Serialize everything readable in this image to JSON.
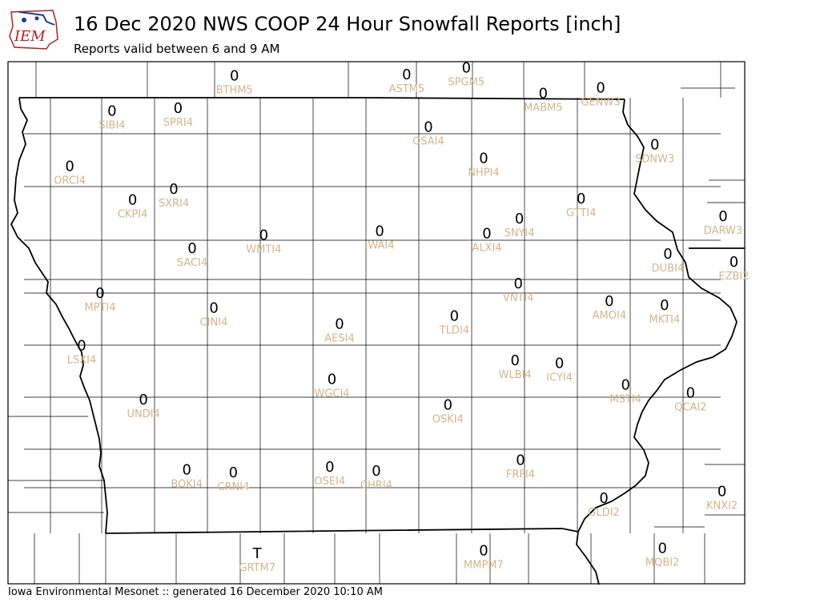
{
  "header": {
    "title": "16 Dec 2020 NWS COOP 24 Hour Snowfall Reports [inch]",
    "subtitle": "Reports valid between 6 and 9 AM"
  },
  "logo": {
    "text": "IEM",
    "color": "#b22222"
  },
  "footer": {
    "text": "Iowa Environmental Mesonet :: generated 16 December 2020 10:10 AM"
  },
  "colors": {
    "value": "#000000",
    "station_id": "#d2b48c",
    "county_line": "#000000",
    "state_line": "#000000"
  },
  "chart_data": {
    "type": "map",
    "title": "16 Dec 2020 NWS COOP 24 Hour Snowfall Reports [inch]",
    "units": "inch",
    "stations": [
      {
        "id": "BTHM5",
        "value": "0",
        "lon": -94.61,
        "lat": 43.66
      },
      {
        "id": "ASTM5",
        "value": "0",
        "lon": -93.02,
        "lat": 43.67
      },
      {
        "id": "SPGM5",
        "value": "0",
        "lon": -92.47,
        "lat": 43.72
      },
      {
        "id": "MABM5",
        "value": "0",
        "lon": -91.76,
        "lat": 43.53
      },
      {
        "id": "GENW3",
        "value": "0",
        "lon": -91.23,
        "lat": 43.57
      },
      {
        "id": "SIBI4",
        "value": "0",
        "lon": -95.74,
        "lat": 43.4
      },
      {
        "id": "SPRI4",
        "value": "0",
        "lon": -95.13,
        "lat": 43.42
      },
      {
        "id": "OSAI4",
        "value": "0",
        "lon": -92.82,
        "lat": 43.28
      },
      {
        "id": "NHPI4",
        "value": "0",
        "lon": -92.31,
        "lat": 43.05
      },
      {
        "id": "SDNW3",
        "value": "0",
        "lon": -90.73,
        "lat": 43.15
      },
      {
        "id": "ORCI4",
        "value": "0",
        "lon": -96.13,
        "lat": 42.99
      },
      {
        "id": "SXRI4",
        "value": "0",
        "lon": -95.17,
        "lat": 42.82
      },
      {
        "id": "CKPI4",
        "value": "0",
        "lon": -95.55,
        "lat": 42.74
      },
      {
        "id": "GTTI4",
        "value": "0",
        "lon": -91.41,
        "lat": 42.75
      },
      {
        "id": "DARW3",
        "value": "0",
        "lon": -90.1,
        "lat": 42.62
      },
      {
        "id": "WMTI4",
        "value": "0",
        "lon": -94.34,
        "lat": 42.48
      },
      {
        "id": "IWAI4",
        "value": "0",
        "lon": -93.27,
        "lat": 42.51
      },
      {
        "id": "ALXI4",
        "value": "0",
        "lon": -92.28,
        "lat": 42.49
      },
      {
        "id": "SNYI4",
        "value": "0",
        "lon": -91.98,
        "lat": 42.6
      },
      {
        "id": "SACI4",
        "value": "0",
        "lon": -95.0,
        "lat": 42.38
      },
      {
        "id": "DUBI4",
        "value": "0",
        "lon": -90.61,
        "lat": 42.34
      },
      {
        "id": "EZBI2",
        "value": "0",
        "lon": -90.0,
        "lat": 42.28
      },
      {
        "id": "MPTI4",
        "value": "0",
        "lon": -95.85,
        "lat": 42.05
      },
      {
        "id": "CINI4",
        "value": "0",
        "lon": -94.8,
        "lat": 41.94
      },
      {
        "id": "AESI4",
        "value": "0",
        "lon": -93.64,
        "lat": 41.82
      },
      {
        "id": "TLDI4",
        "value": "0",
        "lon": -92.58,
        "lat": 41.88
      },
      {
        "id": "VNTI4",
        "value": "0",
        "lon": -91.99,
        "lat": 42.12
      },
      {
        "id": "AMOI4",
        "value": "0",
        "lon": -91.15,
        "lat": 41.99
      },
      {
        "id": "MKTI4",
        "value": "0",
        "lon": -90.64,
        "lat": 41.96
      },
      {
        "id": "LSXI4",
        "value": "0",
        "lon": -96.02,
        "lat": 41.66
      },
      {
        "id": "WLBI4",
        "value": "0",
        "lon": -92.02,
        "lat": 41.55
      },
      {
        "id": "ICYI4",
        "value": "0",
        "lon": -91.61,
        "lat": 41.53
      },
      {
        "id": "WGCI4",
        "value": "0",
        "lon": -93.71,
        "lat": 41.41
      },
      {
        "id": "MSTI4",
        "value": "0",
        "lon": -91.0,
        "lat": 41.37
      },
      {
        "id": "QCAI2",
        "value": "0",
        "lon": -90.4,
        "lat": 41.31
      },
      {
        "id": "UNDI4",
        "value": "0",
        "lon": -95.45,
        "lat": 41.26
      },
      {
        "id": "OSKI4",
        "value": "0",
        "lon": -92.64,
        "lat": 41.22
      },
      {
        "id": "BOKI4",
        "value": "0",
        "lon": -95.05,
        "lat": 40.74
      },
      {
        "id": "CRNI4",
        "value": "0",
        "lon": -94.62,
        "lat": 40.72
      },
      {
        "id": "OSEI4",
        "value": "0",
        "lon": -93.73,
        "lat": 40.76
      },
      {
        "id": "CHRI4",
        "value": "0",
        "lon": -93.3,
        "lat": 40.73
      },
      {
        "id": "FRFI4",
        "value": "0",
        "lon": -91.97,
        "lat": 40.81
      },
      {
        "id": "GLDI2",
        "value": "0",
        "lon": -91.2,
        "lat": 40.53
      },
      {
        "id": "KNXI2",
        "value": "0",
        "lon": -90.11,
        "lat": 40.58
      },
      {
        "id": "GRTM7",
        "value": "T",
        "lon": -94.4,
        "lat": 40.12
      },
      {
        "id": "MMPM7",
        "value": "0",
        "lon": -92.31,
        "lat": 40.14
      },
      {
        "id": "MQBI2",
        "value": "0",
        "lon": -90.66,
        "lat": 40.16
      }
    ]
  }
}
